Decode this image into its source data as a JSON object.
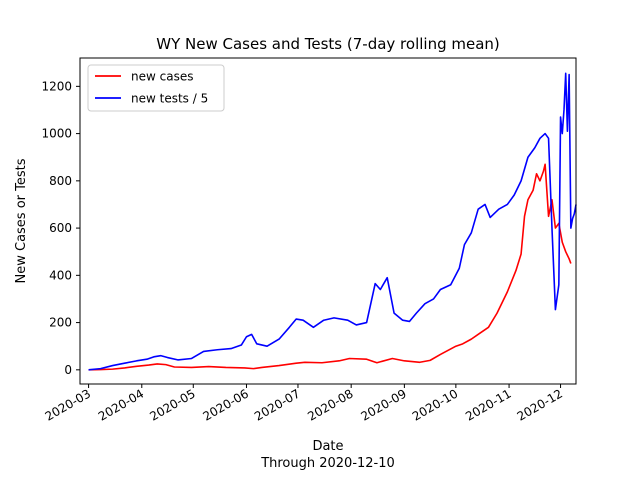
{
  "chart_data": {
    "type": "line",
    "title": "WY New Cases and Tests (7-day rolling mean)",
    "xlabel": "Date",
    "xlabel_sub": "Through 2020-12-10",
    "ylabel": "New Cases or Tests",
    "xlim": [
      "2020-02-25",
      "2020-12-10"
    ],
    "ylim": [
      -60,
      1320
    ],
    "x_ticks": [
      "2020-03",
      "2020-04",
      "2020-05",
      "2020-06",
      "2020-07",
      "2020-08",
      "2020-09",
      "2020-10",
      "2020-11",
      "2020-12"
    ],
    "y_ticks": [
      0,
      200,
      400,
      600,
      800,
      1000,
      1200
    ],
    "grid": false,
    "legend_position": "upper-left",
    "series": [
      {
        "name": "new cases",
        "color": "#ff0000",
        "points": [
          [
            "2020-03-01",
            0
          ],
          [
            "2020-03-08",
            1
          ],
          [
            "2020-03-15",
            3
          ],
          [
            "2020-03-22",
            8
          ],
          [
            "2020-03-29",
            15
          ],
          [
            "2020-04-05",
            20
          ],
          [
            "2020-04-10",
            25
          ],
          [
            "2020-04-15",
            22
          ],
          [
            "2020-04-20",
            12
          ],
          [
            "2020-04-30",
            10
          ],
          [
            "2020-05-10",
            14
          ],
          [
            "2020-05-20",
            10
          ],
          [
            "2020-05-31",
            8
          ],
          [
            "2020-06-05",
            5
          ],
          [
            "2020-06-10",
            10
          ],
          [
            "2020-06-20",
            18
          ],
          [
            "2020-06-30",
            28
          ],
          [
            "2020-07-05",
            32
          ],
          [
            "2020-07-15",
            30
          ],
          [
            "2020-07-25",
            38
          ],
          [
            "2020-07-31",
            48
          ],
          [
            "2020-08-10",
            45
          ],
          [
            "2020-08-16",
            30
          ],
          [
            "2020-08-25",
            48
          ],
          [
            "2020-09-01",
            38
          ],
          [
            "2020-09-10",
            32
          ],
          [
            "2020-09-16",
            40
          ],
          [
            "2020-09-22",
            65
          ],
          [
            "2020-10-01",
            100
          ],
          [
            "2020-10-05",
            110
          ],
          [
            "2020-10-10",
            130
          ],
          [
            "2020-10-15",
            155
          ],
          [
            "2020-10-20",
            180
          ],
          [
            "2020-10-25",
            240
          ],
          [
            "2020-10-31",
            330
          ],
          [
            "2020-11-05",
            420
          ],
          [
            "2020-11-08",
            490
          ],
          [
            "2020-11-10",
            650
          ],
          [
            "2020-11-12",
            720
          ],
          [
            "2020-11-15",
            760
          ],
          [
            "2020-11-17",
            830
          ],
          [
            "2020-11-19",
            800
          ],
          [
            "2020-11-21",
            840
          ],
          [
            "2020-11-22",
            870
          ],
          [
            "2020-11-24",
            650
          ],
          [
            "2020-11-26",
            720
          ],
          [
            "2020-11-28",
            600
          ],
          [
            "2020-11-30",
            620
          ],
          [
            "2020-12-02",
            540
          ],
          [
            "2020-12-04",
            500
          ],
          [
            "2020-12-06",
            470
          ],
          [
            "2020-12-07",
            450
          ]
        ]
      },
      {
        "name": "new tests / 5",
        "color": "#0000ff",
        "points": [
          [
            "2020-03-01",
            0
          ],
          [
            "2020-03-08",
            5
          ],
          [
            "2020-03-15",
            18
          ],
          [
            "2020-03-22",
            28
          ],
          [
            "2020-03-29",
            38
          ],
          [
            "2020-04-04",
            45
          ],
          [
            "2020-04-08",
            55
          ],
          [
            "2020-04-12",
            60
          ],
          [
            "2020-04-16",
            52
          ],
          [
            "2020-04-22",
            42
          ],
          [
            "2020-04-30",
            48
          ],
          [
            "2020-05-07",
            78
          ],
          [
            "2020-05-15",
            85
          ],
          [
            "2020-05-23",
            90
          ],
          [
            "2020-05-29",
            105
          ],
          [
            "2020-06-01",
            140
          ],
          [
            "2020-06-04",
            150
          ],
          [
            "2020-06-07",
            110
          ],
          [
            "2020-06-13",
            100
          ],
          [
            "2020-06-20",
            130
          ],
          [
            "2020-06-26",
            180
          ],
          [
            "2020-06-30",
            215
          ],
          [
            "2020-07-04",
            210
          ],
          [
            "2020-07-10",
            180
          ],
          [
            "2020-07-16",
            210
          ],
          [
            "2020-07-22",
            220
          ],
          [
            "2020-07-30",
            210
          ],
          [
            "2020-08-04",
            190
          ],
          [
            "2020-08-10",
            200
          ],
          [
            "2020-08-15",
            365
          ],
          [
            "2020-08-18",
            340
          ],
          [
            "2020-08-22",
            390
          ],
          [
            "2020-08-26",
            240
          ],
          [
            "2020-08-31",
            210
          ],
          [
            "2020-09-04",
            205
          ],
          [
            "2020-09-08",
            240
          ],
          [
            "2020-09-13",
            280
          ],
          [
            "2020-09-18",
            300
          ],
          [
            "2020-09-22",
            340
          ],
          [
            "2020-09-28",
            360
          ],
          [
            "2020-10-03",
            430
          ],
          [
            "2020-10-06",
            530
          ],
          [
            "2020-10-10",
            580
          ],
          [
            "2020-10-14",
            680
          ],
          [
            "2020-10-18",
            700
          ],
          [
            "2020-10-21",
            645
          ],
          [
            "2020-10-26",
            680
          ],
          [
            "2020-10-31",
            700
          ],
          [
            "2020-11-04",
            740
          ],
          [
            "2020-11-08",
            800
          ],
          [
            "2020-11-12",
            900
          ],
          [
            "2020-11-16",
            940
          ],
          [
            "2020-11-19",
            980
          ],
          [
            "2020-11-22",
            1000
          ],
          [
            "2020-11-24",
            980
          ],
          [
            "2020-11-26",
            600
          ],
          [
            "2020-11-28",
            255
          ],
          [
            "2020-11-30",
            360
          ],
          [
            "2020-12-01",
            1070
          ],
          [
            "2020-12-02",
            1000
          ],
          [
            "2020-12-03",
            1100
          ],
          [
            "2020-12-04",
            1255
          ],
          [
            "2020-12-05",
            1010
          ],
          [
            "2020-12-06",
            1250
          ],
          [
            "2020-12-07",
            600
          ],
          [
            "2020-12-08",
            640
          ],
          [
            "2020-12-09",
            660
          ],
          [
            "2020-12-10",
            700
          ]
        ]
      }
    ]
  }
}
